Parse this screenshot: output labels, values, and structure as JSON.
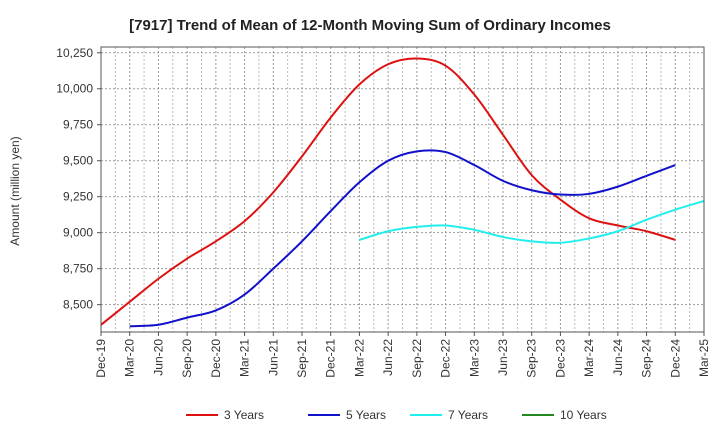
{
  "chart_data": {
    "type": "line",
    "title": "[7917]  Trend of Mean of 12-Month Moving Sum of Ordinary Incomes",
    "ylabel": "Amount (million yen)",
    "xlabel": "",
    "ylim": [
      8310,
      10290
    ],
    "y_ticks": [
      8500,
      8750,
      9000,
      9250,
      9500,
      9750,
      10000,
      10250
    ],
    "y_tick_labels": [
      "8,500",
      "8,750",
      "9,000",
      "9,250",
      "9,500",
      "9,750",
      "10,000",
      "10,250"
    ],
    "x_tick_labels": [
      "Dec-19",
      "Mar-20",
      "Jun-20",
      "Sep-20",
      "Dec-20",
      "Mar-21",
      "Jun-21",
      "Sep-21",
      "Dec-21",
      "Mar-22",
      "Jun-22",
      "Sep-22",
      "Dec-22",
      "Mar-23",
      "Jun-23",
      "Sep-23",
      "Dec-23",
      "Mar-24",
      "Jun-24",
      "Sep-24",
      "Dec-24",
      "Mar-25"
    ],
    "grid": true,
    "legend_position": "bottom",
    "series": [
      {
        "name": "3 Years",
        "color": "#dd1111",
        "start_index": 0,
        "values": [
          8360,
          8520,
          8680,
          8820,
          8940,
          9080,
          9280,
          9530,
          9800,
          10030,
          10170,
          10210,
          10160,
          9960,
          9680,
          9400,
          9230,
          9100,
          9050,
          9010,
          8950
        ]
      },
      {
        "name": "5 Years",
        "color": "#1111cc",
        "start_index": 1,
        "values": [
          8350,
          8360,
          8410,
          8460,
          8570,
          8750,
          8940,
          9150,
          9350,
          9500,
          9565,
          9560,
          9470,
          9360,
          9295,
          9265,
          9270,
          9320,
          9395,
          9470
        ]
      },
      {
        "name": "7 Years",
        "color": "#22eeee",
        "start_index": 9,
        "values": [
          8950,
          9010,
          9040,
          9050,
          9020,
          8970,
          8940,
          8930,
          8960,
          9010,
          9090,
          9160,
          9220
        ]
      },
      {
        "name": "10 Years",
        "color": "#228822",
        "start_index": 0,
        "values": []
      }
    ]
  }
}
